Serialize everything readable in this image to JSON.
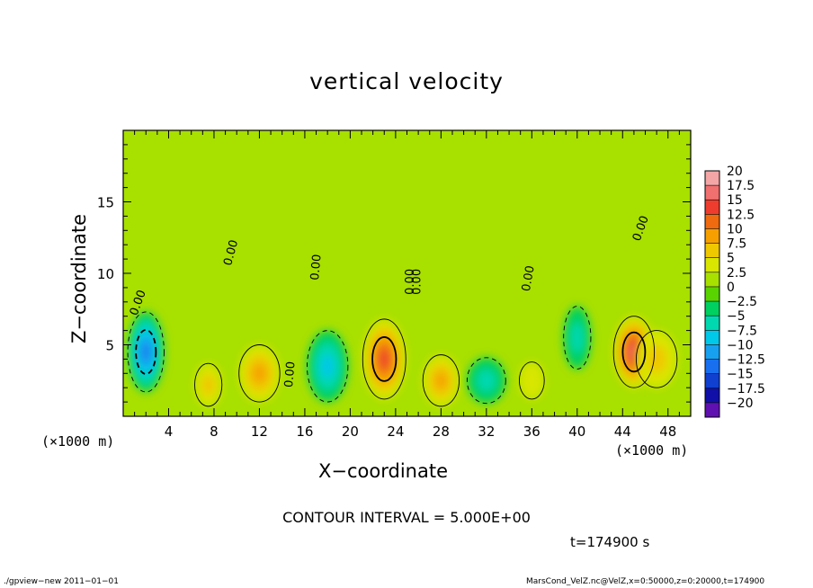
{
  "chart_data": {
    "type": "heatmap",
    "title": "vertical velocity",
    "xlabel": "X−coordinate",
    "ylabel": "Z−coordinate",
    "xunit": "(×1000 m)",
    "xunit_right": "(×1000 m)",
    "xlim": [
      0,
      50
    ],
    "ylim": [
      0,
      20
    ],
    "x_ticks": [
      4,
      8,
      12,
      16,
      20,
      24,
      28,
      32,
      36,
      40,
      44,
      48
    ],
    "y_ticks": [
      5,
      10,
      15
    ],
    "colorbar": {
      "levels": [
        "20",
        "17.5",
        "15",
        "12.5",
        "10",
        "7.5",
        "5",
        "2.5",
        "0",
        "−2.5",
        "−5",
        "−7.5",
        "−10",
        "−12.5",
        "−15",
        "−17.5",
        "−20"
      ],
      "colors": [
        "#f4a6a6",
        "#f06f6f",
        "#ee3d2e",
        "#f06a10",
        "#f5a000",
        "#f0c800",
        "#d8e600",
        "#a8e000",
        "#5ad400",
        "#00d060",
        "#00d8b0",
        "#00c8e8",
        "#18a0f0",
        "#1870f0",
        "#1040d0",
        "#1010a8",
        "#6010b0"
      ]
    },
    "cells": [
      {
        "x": 2,
        "z": 4.5,
        "w": -13,
        "sx": 1.6,
        "sz": 2.8
      },
      {
        "x": 7.5,
        "z": 2.2,
        "w": 5,
        "sx": 1.2,
        "sz": 1.5
      },
      {
        "x": 12,
        "z": 3,
        "w": 8,
        "sx": 1.8,
        "sz": 2
      },
      {
        "x": 18,
        "z": 3.5,
        "w": -7,
        "sx": 1.8,
        "sz": 2.5
      },
      {
        "x": 23,
        "z": 4,
        "w": 13,
        "sx": 1.9,
        "sz": 2.8
      },
      {
        "x": 28,
        "z": 2.5,
        "w": 7,
        "sx": 1.6,
        "sz": 1.8
      },
      {
        "x": 32,
        "z": 2.5,
        "w": -6,
        "sx": 1.7,
        "sz": 1.6
      },
      {
        "x": 36,
        "z": 2.5,
        "w": 3,
        "sx": 1.1,
        "sz": 1.3
      },
      {
        "x": 40,
        "z": 5.5,
        "w": -4,
        "sx": 1.2,
        "sz": 2.2
      },
      {
        "x": 45,
        "z": 4.5,
        "w": 14,
        "sx": 1.8,
        "sz": 2.5
      },
      {
        "x": 47,
        "z": 4,
        "w": 6,
        "sx": 1.8,
        "sz": 2
      }
    ],
    "contour_labels": [
      "0.00",
      "0.00",
      "0.00",
      "0.00",
      "0.00",
      "0.00",
      "0.00",
      "0.00"
    ]
  },
  "contour_interval": "CONTOUR INTERVAL = 5.000E+00",
  "time_label": "t=174900 s",
  "footer_left": "./gpview−new   2011−01−01",
  "footer_right": "MarsCond_VelZ.nc@VelZ,x=0:50000,z=0:20000,t=174900"
}
